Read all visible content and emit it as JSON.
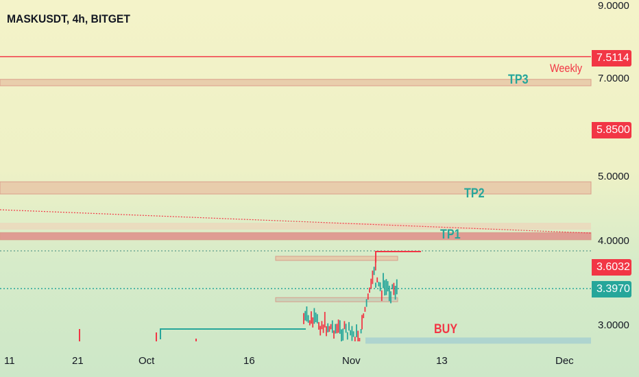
{
  "title": "MASKUSDT, 4h, BITGET",
  "colors": {
    "up": "#26a69a",
    "down": "#f23645",
    "zone": "#e8c8a8",
    "buy_zone": "#a8d0d0"
  },
  "chart_data": {
    "type": "candlestick",
    "yscale": "log",
    "ylim": [
      2.8,
      9.2
    ],
    "y_ticks": [
      "9.0000",
      "7.0000",
      "5.0000",
      "4.0000",
      "3.0000"
    ],
    "x_ticks": [
      "11",
      "21",
      "Oct",
      "16",
      "Nov",
      "13",
      "Dec"
    ],
    "price_badges": [
      {
        "value": "7.5114",
        "color": "#f23645"
      },
      {
        "value": "5.8500",
        "color": "#f23645"
      },
      {
        "value": "3.6032",
        "color": "#f23645"
      },
      {
        "value": "3.3970",
        "color": "#26a69a"
      }
    ],
    "annotations": [
      {
        "text": "Weekly",
        "color": "#f23645"
      },
      {
        "text": "TP3",
        "color": "#26a69a"
      },
      {
        "text": "TP2",
        "color": "#26a69a"
      },
      {
        "text": "TP1",
        "color": "#26a69a"
      },
      {
        "text": "BUY",
        "color": "#f23645"
      }
    ],
    "zones": [
      {
        "from": 6.8,
        "to": 6.95
      },
      {
        "from": 4.7,
        "to": 4.9
      },
      {
        "from": 4.02,
        "to": 4.12
      },
      {
        "from": 3.75,
        "to": 3.8
      },
      {
        "from": 3.26,
        "to": 3.3
      },
      {
        "from": 2.82,
        "to": 2.88,
        "type": "buy"
      }
    ],
    "levels": [
      7.5114,
      3.8,
      3.397
    ]
  }
}
